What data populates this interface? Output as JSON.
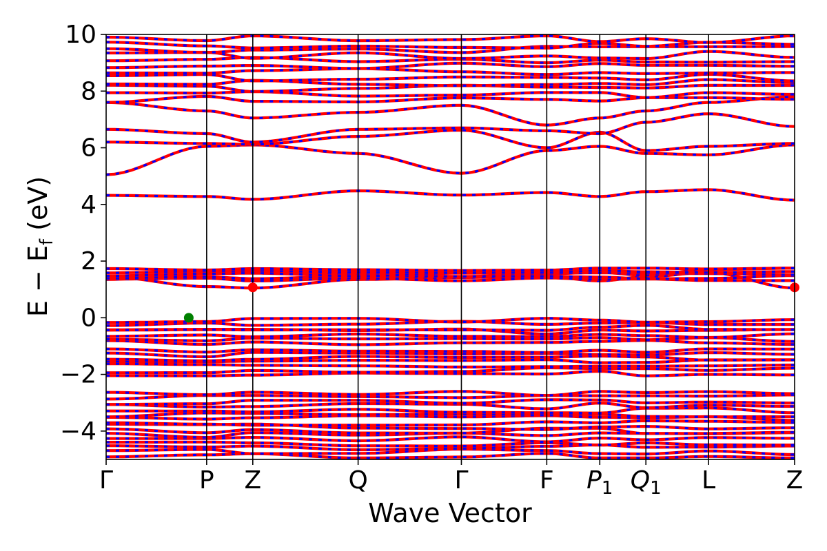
{
  "chart_data": {
    "type": "line",
    "title": "",
    "xlabel": "Wave Vector",
    "ylabel": "E − E",
    "ylabel_subscript": "f",
    "ylabel_unit": "(eV)",
    "ylim": [
      -5,
      10
    ],
    "yticks": [
      -4,
      -2,
      0,
      2,
      4,
      6,
      8,
      10
    ],
    "ytick_labels": [
      "−4",
      "−2",
      "0",
      "2",
      "4",
      "6",
      "8",
      "10"
    ],
    "kpath": [
      {
        "label": "Γ",
        "sub": "",
        "x": 0.0
      },
      {
        "label": "P",
        "sub": "",
        "x": 0.146
      },
      {
        "label": "Z",
        "sub": "",
        "x": 0.213
      },
      {
        "label": "Q",
        "sub": "",
        "x": 0.366
      },
      {
        "label": "Γ",
        "sub": "",
        "x": 0.516
      },
      {
        "label": "F",
        "sub": "",
        "x": 0.64
      },
      {
        "label": "P",
        "sub": "1",
        "x": 0.717
      },
      {
        "label": "Q",
        "sub": "1",
        "x": 0.784
      },
      {
        "label": "L",
        "sub": "",
        "x": 0.875
      },
      {
        "label": "Z",
        "sub": "",
        "x": 1.0
      }
    ],
    "series": [
      {
        "color": "#ff0000",
        "dash": "solid"
      },
      {
        "color": "#0000ff",
        "dash": "dashed"
      }
    ],
    "isolated_bands": [
      {
        "y": [
          4.32,
          4.28,
          4.18,
          4.48,
          4.33,
          4.42,
          4.28,
          4.45,
          4.52,
          4.15
        ]
      },
      {
        "y": [
          5.05,
          6.05,
          6.1,
          5.8,
          5.1,
          5.9,
          6.05,
          5.8,
          5.75,
          6.1
        ]
      },
      {
        "y": [
          6.2,
          6.15,
          6.12,
          6.4,
          6.62,
          6.0,
          6.55,
          5.9,
          6.05,
          6.15
        ]
      },
      {
        "y": [
          6.65,
          6.5,
          6.2,
          6.65,
          6.7,
          6.6,
          6.5,
          6.9,
          7.2,
          6.75
        ]
      },
      {
        "y": [
          7.6,
          7.3,
          7.05,
          7.25,
          7.5,
          6.8,
          7.05,
          7.3,
          7.6,
          7.8
        ]
      },
      {
        "y": [
          1.45,
          1.1,
          1.05,
          1.35,
          1.42,
          1.45,
          1.3,
          1.45,
          1.6,
          1.05
        ]
      },
      {
        "y": [
          1.35,
          1.55,
          1.65,
          1.55,
          1.45,
          1.55,
          1.6,
          1.5,
          1.7,
          1.75
        ]
      }
    ],
    "band_groups": [
      {
        "ymin": 7.6,
        "ymax": 9.95,
        "count": 12
      },
      {
        "ymin": 1.3,
        "ymax": 1.75,
        "count": 5
      },
      {
        "ymin": -0.95,
        "ymax": -0.02,
        "count": 7
      },
      {
        "ymin": -2.05,
        "ymax": -1.1,
        "count": 7
      },
      {
        "ymin": -4.95,
        "ymax": -2.6,
        "count": 16
      }
    ],
    "markers": [
      {
        "name": "vbm",
        "x": 0.12,
        "y": 0.0,
        "color": "#008000"
      },
      {
        "name": "cbm",
        "x": 0.213,
        "y": 1.07,
        "color": "#ff0000"
      },
      {
        "name": "cbm-end",
        "x": 1.0,
        "y": 1.07,
        "color": "#ff0000"
      }
    ]
  }
}
